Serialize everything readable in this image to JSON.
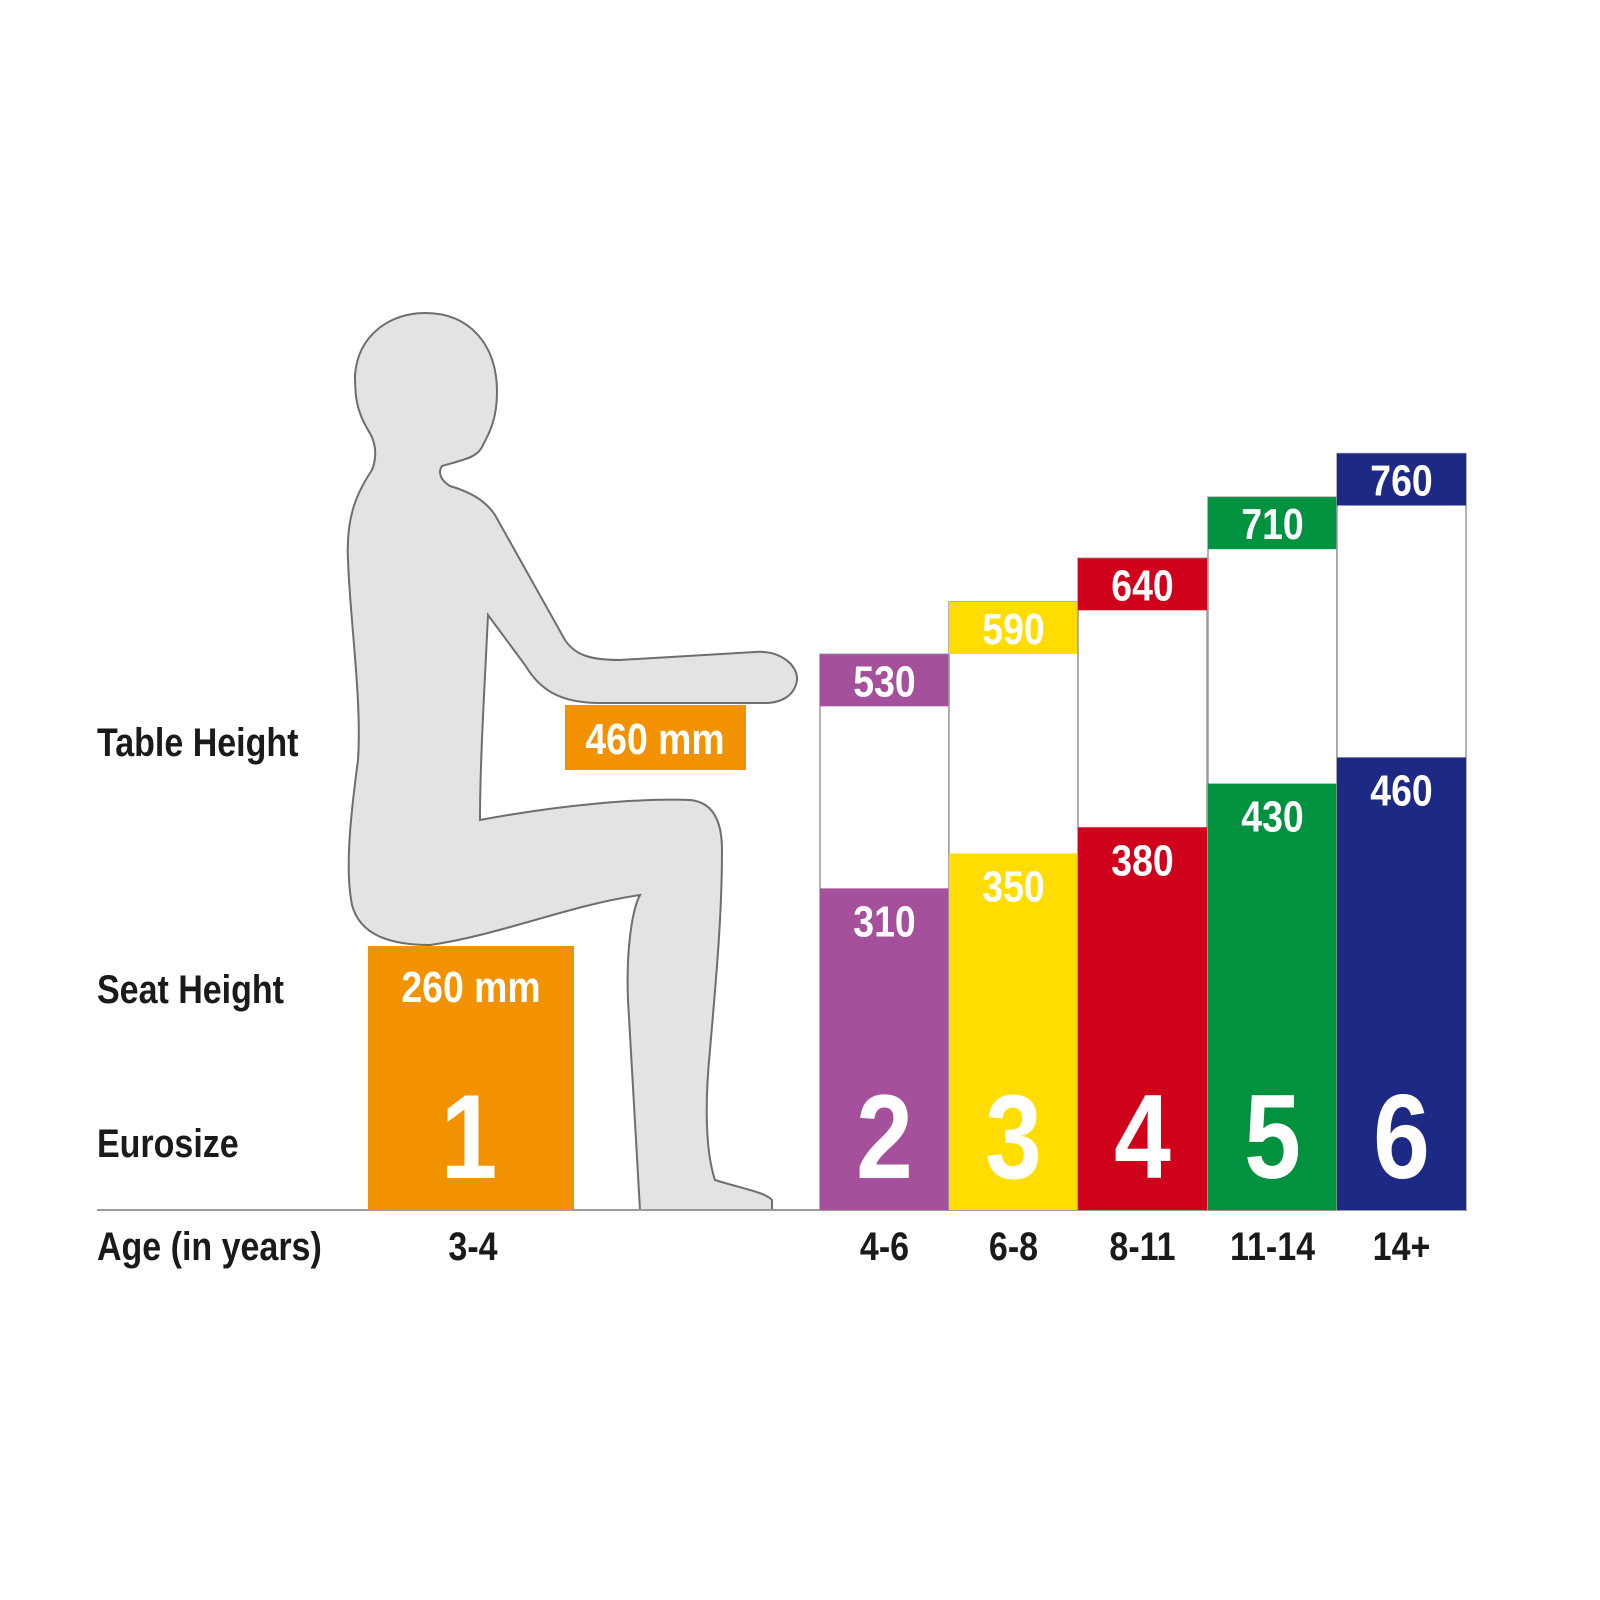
{
  "chart_data": {
    "type": "bar",
    "row_labels": {
      "table_height": "Table Height",
      "seat_height": "Seat Height",
      "eurosize": "Eurosize",
      "age": "Age (in years)"
    },
    "categories": [
      "3-4",
      "4-6",
      "6-8",
      "8-11",
      "11-14",
      "14+"
    ],
    "eurosize": [
      "1",
      "2",
      "3",
      "4",
      "5",
      "6"
    ],
    "seat_height": [
      260,
      310,
      350,
      380,
      430,
      460
    ],
    "table_height": [
      460,
      530,
      590,
      640,
      710,
      760
    ],
    "seat_height_label_size1": "260 mm",
    "table_height_label_size1": "460 mm",
    "unit": "mm",
    "colors": [
      "#f39200",
      "#a5509a",
      "#ffdd00",
      "#d0021b",
      "#00923f",
      "#1d2a85"
    ],
    "figure_color": "#e3e3e3"
  }
}
